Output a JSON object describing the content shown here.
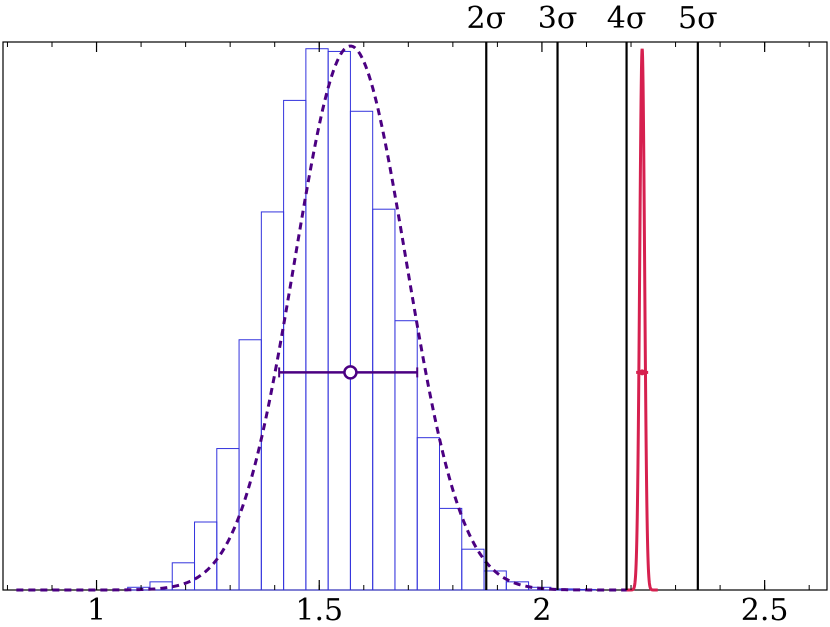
{
  "chart_data": {
    "type": "histogram",
    "title": "",
    "xlabel": "",
    "ylabel": "",
    "xlim": [
      0.79,
      2.64
    ],
    "ylim": [
      0,
      1.0
    ],
    "xticks": [
      1,
      1.5,
      2,
      2.5
    ],
    "xtick_labels": [
      "1",
      "1.5",
      "2",
      "2.5"
    ],
    "grid": false,
    "histogram": {
      "color": "#3333dd",
      "bin_edges": [
        1.07,
        1.12,
        1.17,
        1.22,
        1.27,
        1.32,
        1.37,
        1.42,
        1.47,
        1.52,
        1.57,
        1.62,
        1.67,
        1.72,
        1.77,
        1.82,
        1.87,
        1.92,
        1.97,
        2.02,
        2.07,
        2.12,
        2.17
      ],
      "values": [
        0.005,
        0.015,
        0.05,
        0.125,
        0.26,
        0.46,
        0.695,
        0.9,
        0.995,
        0.99,
        0.88,
        0.7,
        0.495,
        0.28,
        0.15,
        0.075,
        0.035,
        0.015,
        0.005,
        0.002,
        0.001,
        0.0
      ]
    },
    "gaussian_fit": {
      "color": "#4b0082",
      "style": "dashed",
      "mean": 1.57,
      "sigma": 0.125,
      "peak": 1.0,
      "x_range": [
        0.82,
        2.2
      ],
      "marker_y": 0.4,
      "error_bar": [
        1.41,
        1.72
      ]
    },
    "measurement": {
      "color": "#d6204f",
      "mean": 2.225,
      "sigma": 0.0055,
      "peak": 0.995,
      "x_range": [
        2.19,
        2.26
      ],
      "marker_y": 0.4
    },
    "vertical_lines": [
      {
        "x": 1.875,
        "label": "2σ"
      },
      {
        "x": 2.035,
        "label": "3σ"
      },
      {
        "x": 2.19,
        "label": "4σ"
      },
      {
        "x": 2.35,
        "label": "5σ"
      }
    ]
  }
}
